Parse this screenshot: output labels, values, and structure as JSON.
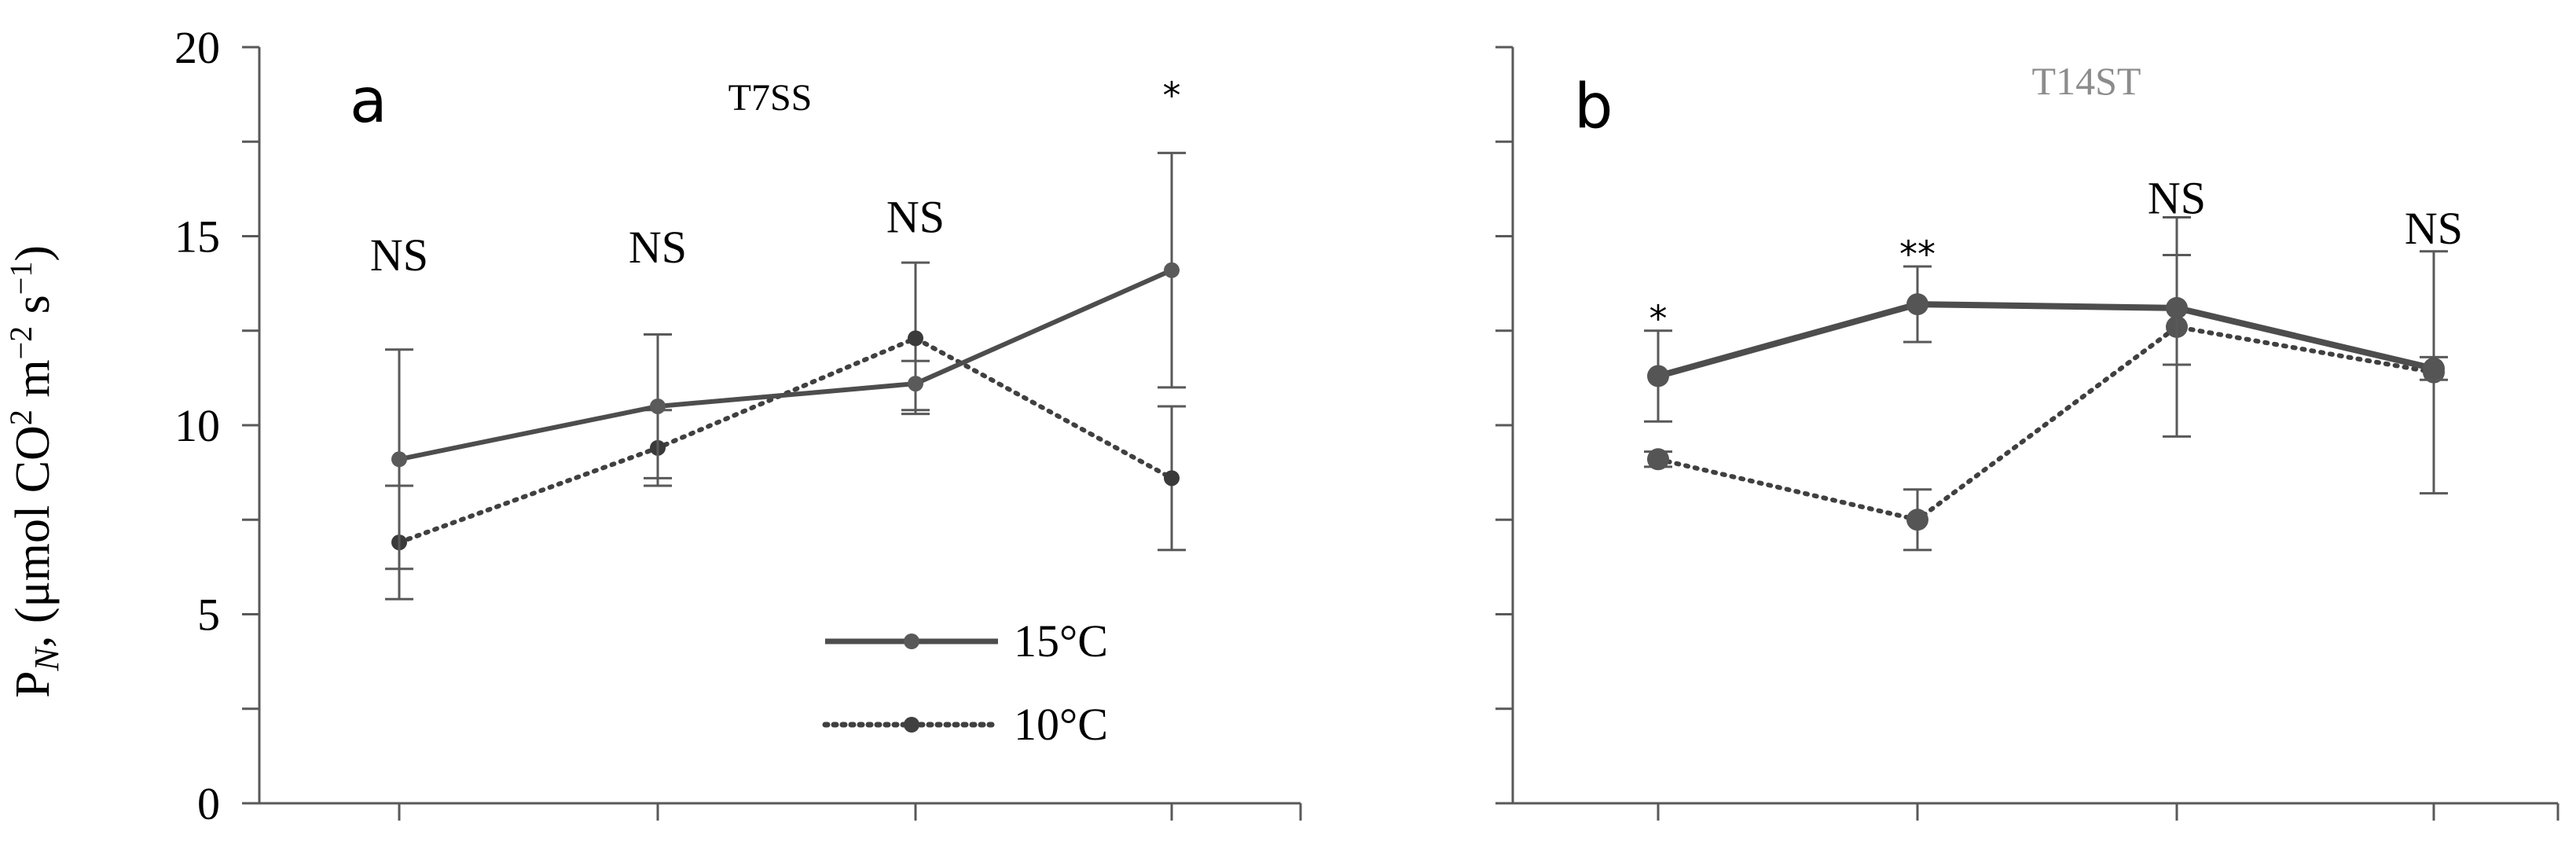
{
  "figure": {
    "ylabel_main": "P",
    "ylabel_sub": "N",
    "ylabel_rest": ", (μmol CO",
    "ylabel_sup1": "2",
    "ylabel_m": " m",
    "ylabel_sup2": "−2",
    "ylabel_s": " s",
    "ylabel_sup3": "−1",
    "ylabel_close": ")"
  },
  "colors": {
    "axis": "#595959",
    "line_15": "#4d4d4d",
    "line_10": "#404040",
    "title_a": "#000000",
    "title_b": "#8c8c8c"
  },
  "legend": {
    "items": [
      {
        "label": "15°C",
        "style": "solid"
      },
      {
        "label": "10°C",
        "style": "dotted"
      }
    ]
  },
  "chart_data": [
    {
      "type": "line",
      "panel_label": "a",
      "title": "T7SS",
      "ylim": [
        0,
        20
      ],
      "yticks": [
        "0",
        "5",
        "10",
        "15",
        "20"
      ],
      "x": [
        1,
        2,
        3,
        4
      ],
      "series": [
        {
          "name": "15°C",
          "values": [
            9.1,
            10.5,
            11.1,
            14.1
          ],
          "error_low": [
            6.2,
            8.6,
            10.3,
            11.0
          ],
          "error_high": [
            12.0,
            12.4,
            11.7,
            17.2
          ]
        },
        {
          "name": "10°C",
          "values": [
            6.9,
            9.4,
            12.3,
            8.6
          ],
          "error_low": [
            5.4,
            8.4,
            10.4,
            6.7
          ],
          "error_high": [
            8.4,
            10.4,
            14.3,
            10.5
          ]
        }
      ],
      "annotations": [
        "NS",
        "NS",
        "NS",
        "*"
      ],
      "annotation_y": [
        14.1,
        14.3,
        15.1,
        18.8
      ],
      "legend_position": "bottom-right"
    },
    {
      "type": "line",
      "panel_label": "b",
      "title": "T14ST",
      "ylim": [
        0,
        20
      ],
      "x": [
        1,
        2,
        3,
        4
      ],
      "series": [
        {
          "name": "15°C",
          "values": [
            11.3,
            13.2,
            13.1,
            11.5
          ],
          "error_low": [
            10.1,
            12.2,
            11.6,
            11.2
          ],
          "error_high": [
            12.5,
            14.2,
            14.5,
            11.8
          ]
        },
        {
          "name": "10°C",
          "values": [
            9.1,
            7.5,
            12.6,
            11.4
          ],
          "error_low": [
            8.9,
            6.7,
            9.7,
            8.2
          ],
          "error_high": [
            9.3,
            8.3,
            15.5,
            14.6
          ]
        }
      ],
      "annotations": [
        "*",
        "**",
        "NS",
        "NS"
      ],
      "annotation_y": [
        12.9,
        14.6,
        15.6,
        14.8
      ]
    }
  ]
}
